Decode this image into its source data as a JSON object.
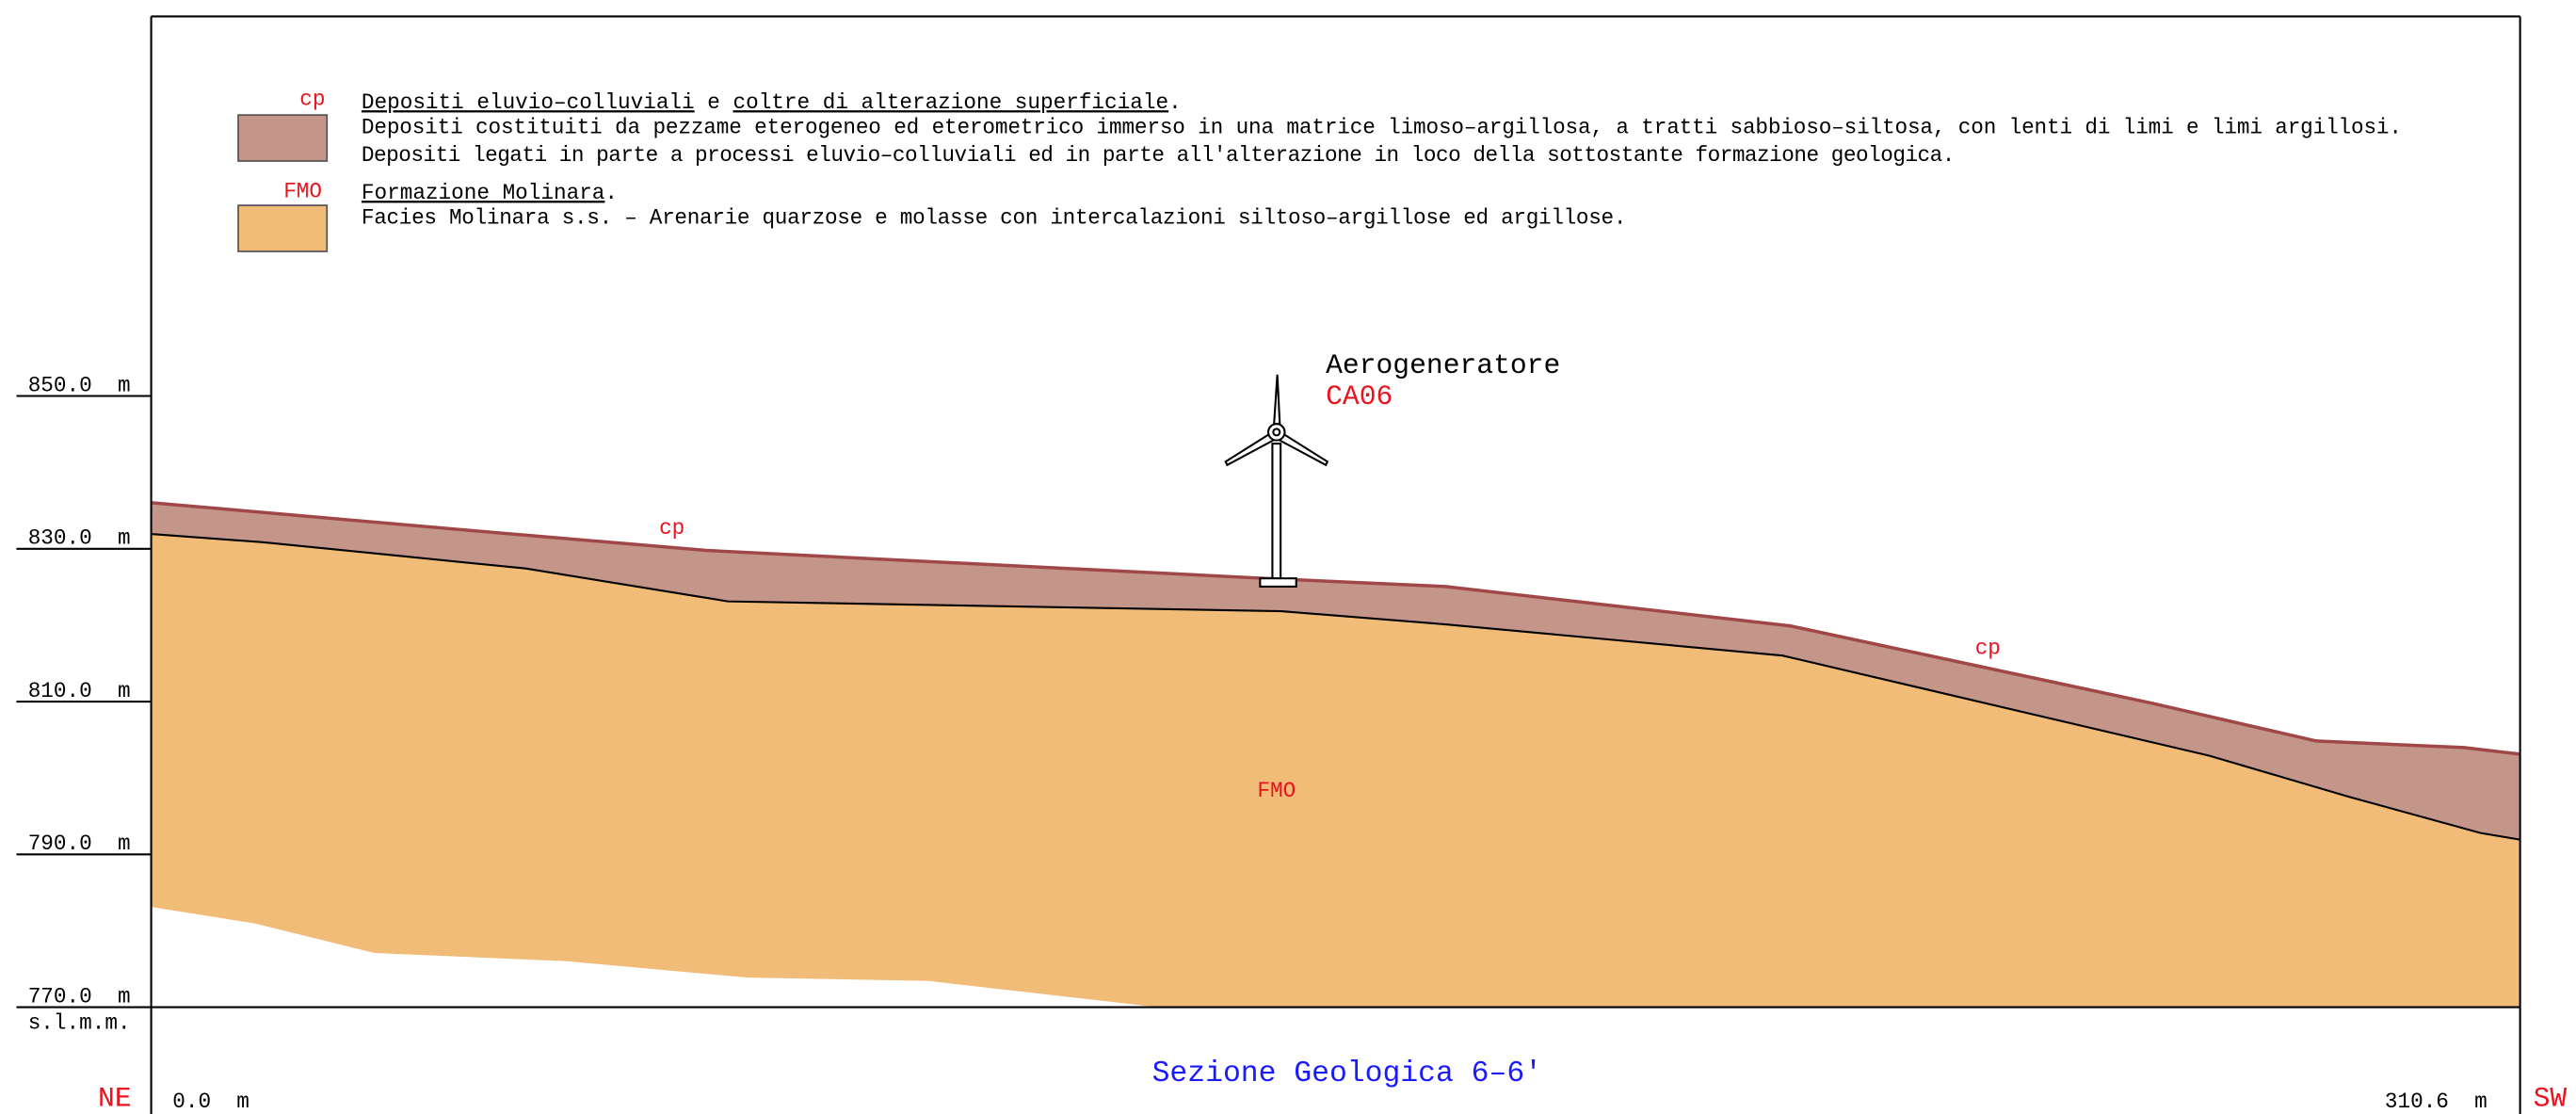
{
  "legend": [
    {
      "code": "cp",
      "title_parts": [
        "Depositi eluvio–colluviali",
        " e ",
        "coltre di alterazione superficiale",
        "."
      ],
      "lines": [
        "Depositi costituiti da pezzame eterogeneo ed eterometrico immerso in una matrice limoso–argillosa, a tratti sabbioso–siltosa, con lenti di limi e limi argillosi.",
        "Depositi legati in parte a processi eluvio–colluviali ed in parte all'alterazione in loco della sottostante formazione geologica."
      ]
    },
    {
      "code": "FMO",
      "title_parts": [
        "Formazione Molinara",
        "."
      ],
      "lines": [
        "Facies Molinara s.s. – Arenarie quarzose e molasse con intercalazioni siltoso–argillose ed argillose."
      ]
    }
  ],
  "elevation_labels": [
    "850.0  m",
    "830.0  m",
    "810.0  m",
    "790.0  m",
    "770.0  m"
  ],
  "datum": "s.l.m.m.",
  "turbine": {
    "label": "Aerogeneratore",
    "id": "CA06"
  },
  "unit_labels": [
    "cp",
    "cp",
    "FMO"
  ],
  "ends": {
    "left": "NE",
    "right": "SW"
  },
  "distances": [
    "0.0  m",
    "310.6  m"
  ],
  "title": "Sezione Geologica 6–6'"
}
